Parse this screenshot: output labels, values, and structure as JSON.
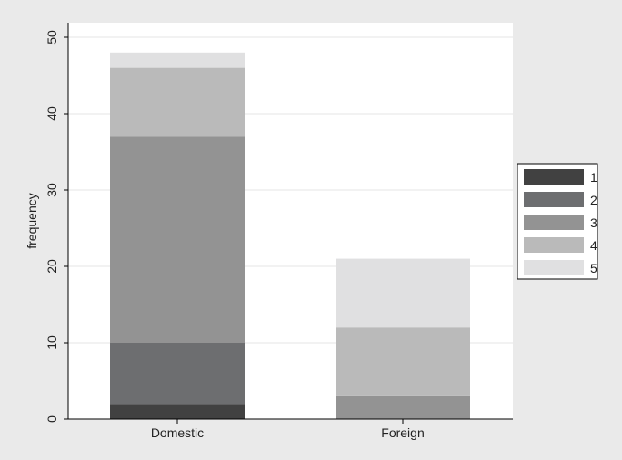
{
  "chart_data": {
    "type": "bar",
    "stacked": true,
    "categories": [
      "Domestic",
      "Foreign"
    ],
    "ylabel": "frequency",
    "xlabel": "",
    "ylim": [
      0,
      50
    ],
    "yticks": [
      0,
      10,
      20,
      30,
      40,
      50
    ],
    "grid": true,
    "legend_position": "right",
    "series": [
      {
        "name": "1",
        "values": [
          2,
          0
        ],
        "color": "#414141"
      },
      {
        "name": "2",
        "values": [
          8,
          0
        ],
        "color": "#6d6e70"
      },
      {
        "name": "3",
        "values": [
          27,
          3
        ],
        "color": "#939393"
      },
      {
        "name": "4",
        "values": [
          9,
          9
        ],
        "color": "#bababa"
      },
      {
        "name": "5",
        "values": [
          2,
          9
        ],
        "color": "#e0e0e1"
      }
    ]
  }
}
